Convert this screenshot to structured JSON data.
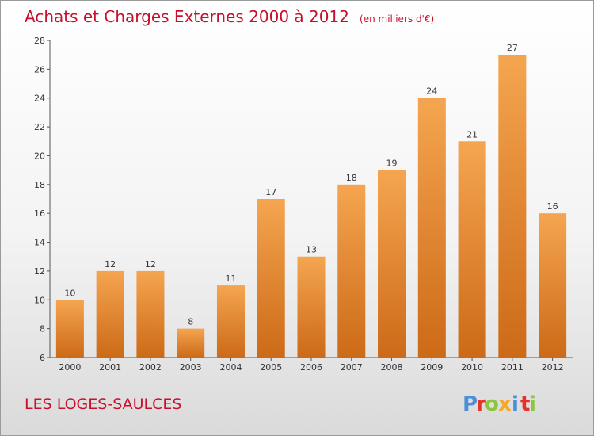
{
  "title": "Achats et Charges Externes 2000 à 2012",
  "unit_note": "(en milliers d'€)",
  "commune": "LES LOGES-SAULCES",
  "logo": {
    "text": "Proxiti",
    "letters": [
      {
        "char": "P",
        "color": "#4a90d9"
      },
      {
        "char": "r",
        "color": "#e6332a"
      },
      {
        "char": "o",
        "color": "#8cc63f"
      },
      {
        "char": "x",
        "color": "#f7a823"
      },
      {
        "char": "i",
        "color": "#4a90d9"
      },
      {
        "char": "t",
        "color": "#e6332a"
      },
      {
        "char": "i",
        "color": "#8cc63f"
      }
    ]
  },
  "colors": {
    "bar_light": "#f5a550",
    "bar_dark": "#cc6a17",
    "title": "#c8102e"
  },
  "chart_data": {
    "type": "bar",
    "title": "Achats et Charges Externes 2000 à 2012",
    "subtitle": "(en milliers d'€)",
    "categories": [
      "2000",
      "2001",
      "2002",
      "2003",
      "2004",
      "2005",
      "2006",
      "2007",
      "2008",
      "2009",
      "2010",
      "2011",
      "2012"
    ],
    "values": [
      10,
      12,
      12,
      8,
      11,
      17,
      13,
      18,
      19,
      24,
      21,
      27,
      16
    ],
    "value_labels": [
      "10",
      "12",
      "12",
      "8",
      "11",
      "17",
      "13",
      "18",
      "19",
      "24",
      "21",
      "27",
      "16"
    ],
    "ylim": [
      6,
      28
    ],
    "yticks": [
      "6",
      "8",
      "10",
      "12",
      "14",
      "16",
      "18",
      "20",
      "22",
      "24",
      "26",
      "28"
    ],
    "grid": false,
    "xlabel": "",
    "ylabel": ""
  }
}
